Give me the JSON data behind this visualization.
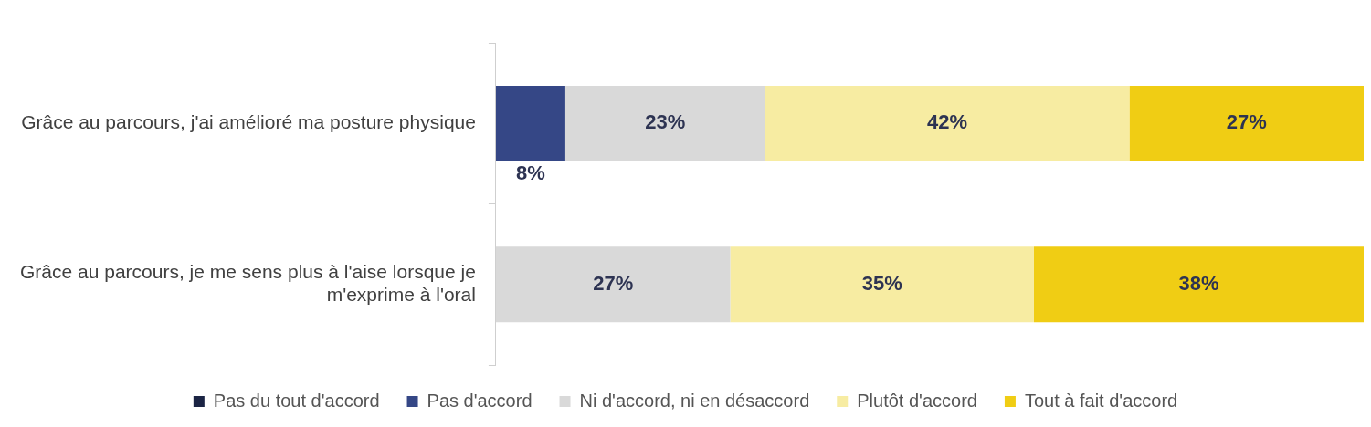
{
  "chart_data": {
    "type": "bar",
    "orientation": "horizontal",
    "stacked": true,
    "categories": [
      "Grâce au parcours, j'ai amélioré ma posture physique",
      "Grâce au parcours, je me sens plus à l'aise lorsque je m'exprime à l'oral"
    ],
    "series": [
      {
        "name": "Pas du tout d'accord",
        "color": "#1b2444",
        "values": [
          0,
          0
        ],
        "value_labels": [
          null,
          null
        ]
      },
      {
        "name": "Pas d'accord",
        "color": "#354786",
        "values": [
          8,
          0
        ],
        "value_labels": [
          "8%",
          null
        ]
      },
      {
        "name": "Ni d'accord, ni en désaccord",
        "color": "#d9d9d9",
        "values": [
          23,
          27
        ],
        "value_labels": [
          "23%",
          "27%"
        ]
      },
      {
        "name": "Plutôt d'accord",
        "color": "#f7eca2",
        "values": [
          42,
          35
        ],
        "value_labels": [
          "42%",
          "35%"
        ]
      },
      {
        "name": "Tout à fait d'accord",
        "color": "#f0cd14",
        "values": [
          27,
          38
        ],
        "value_labels": [
          "27%",
          "38%"
        ]
      }
    ],
    "xlim": [
      0,
      100
    ],
    "tick_labels": "y",
    "grid": false,
    "legend": "bottom"
  }
}
